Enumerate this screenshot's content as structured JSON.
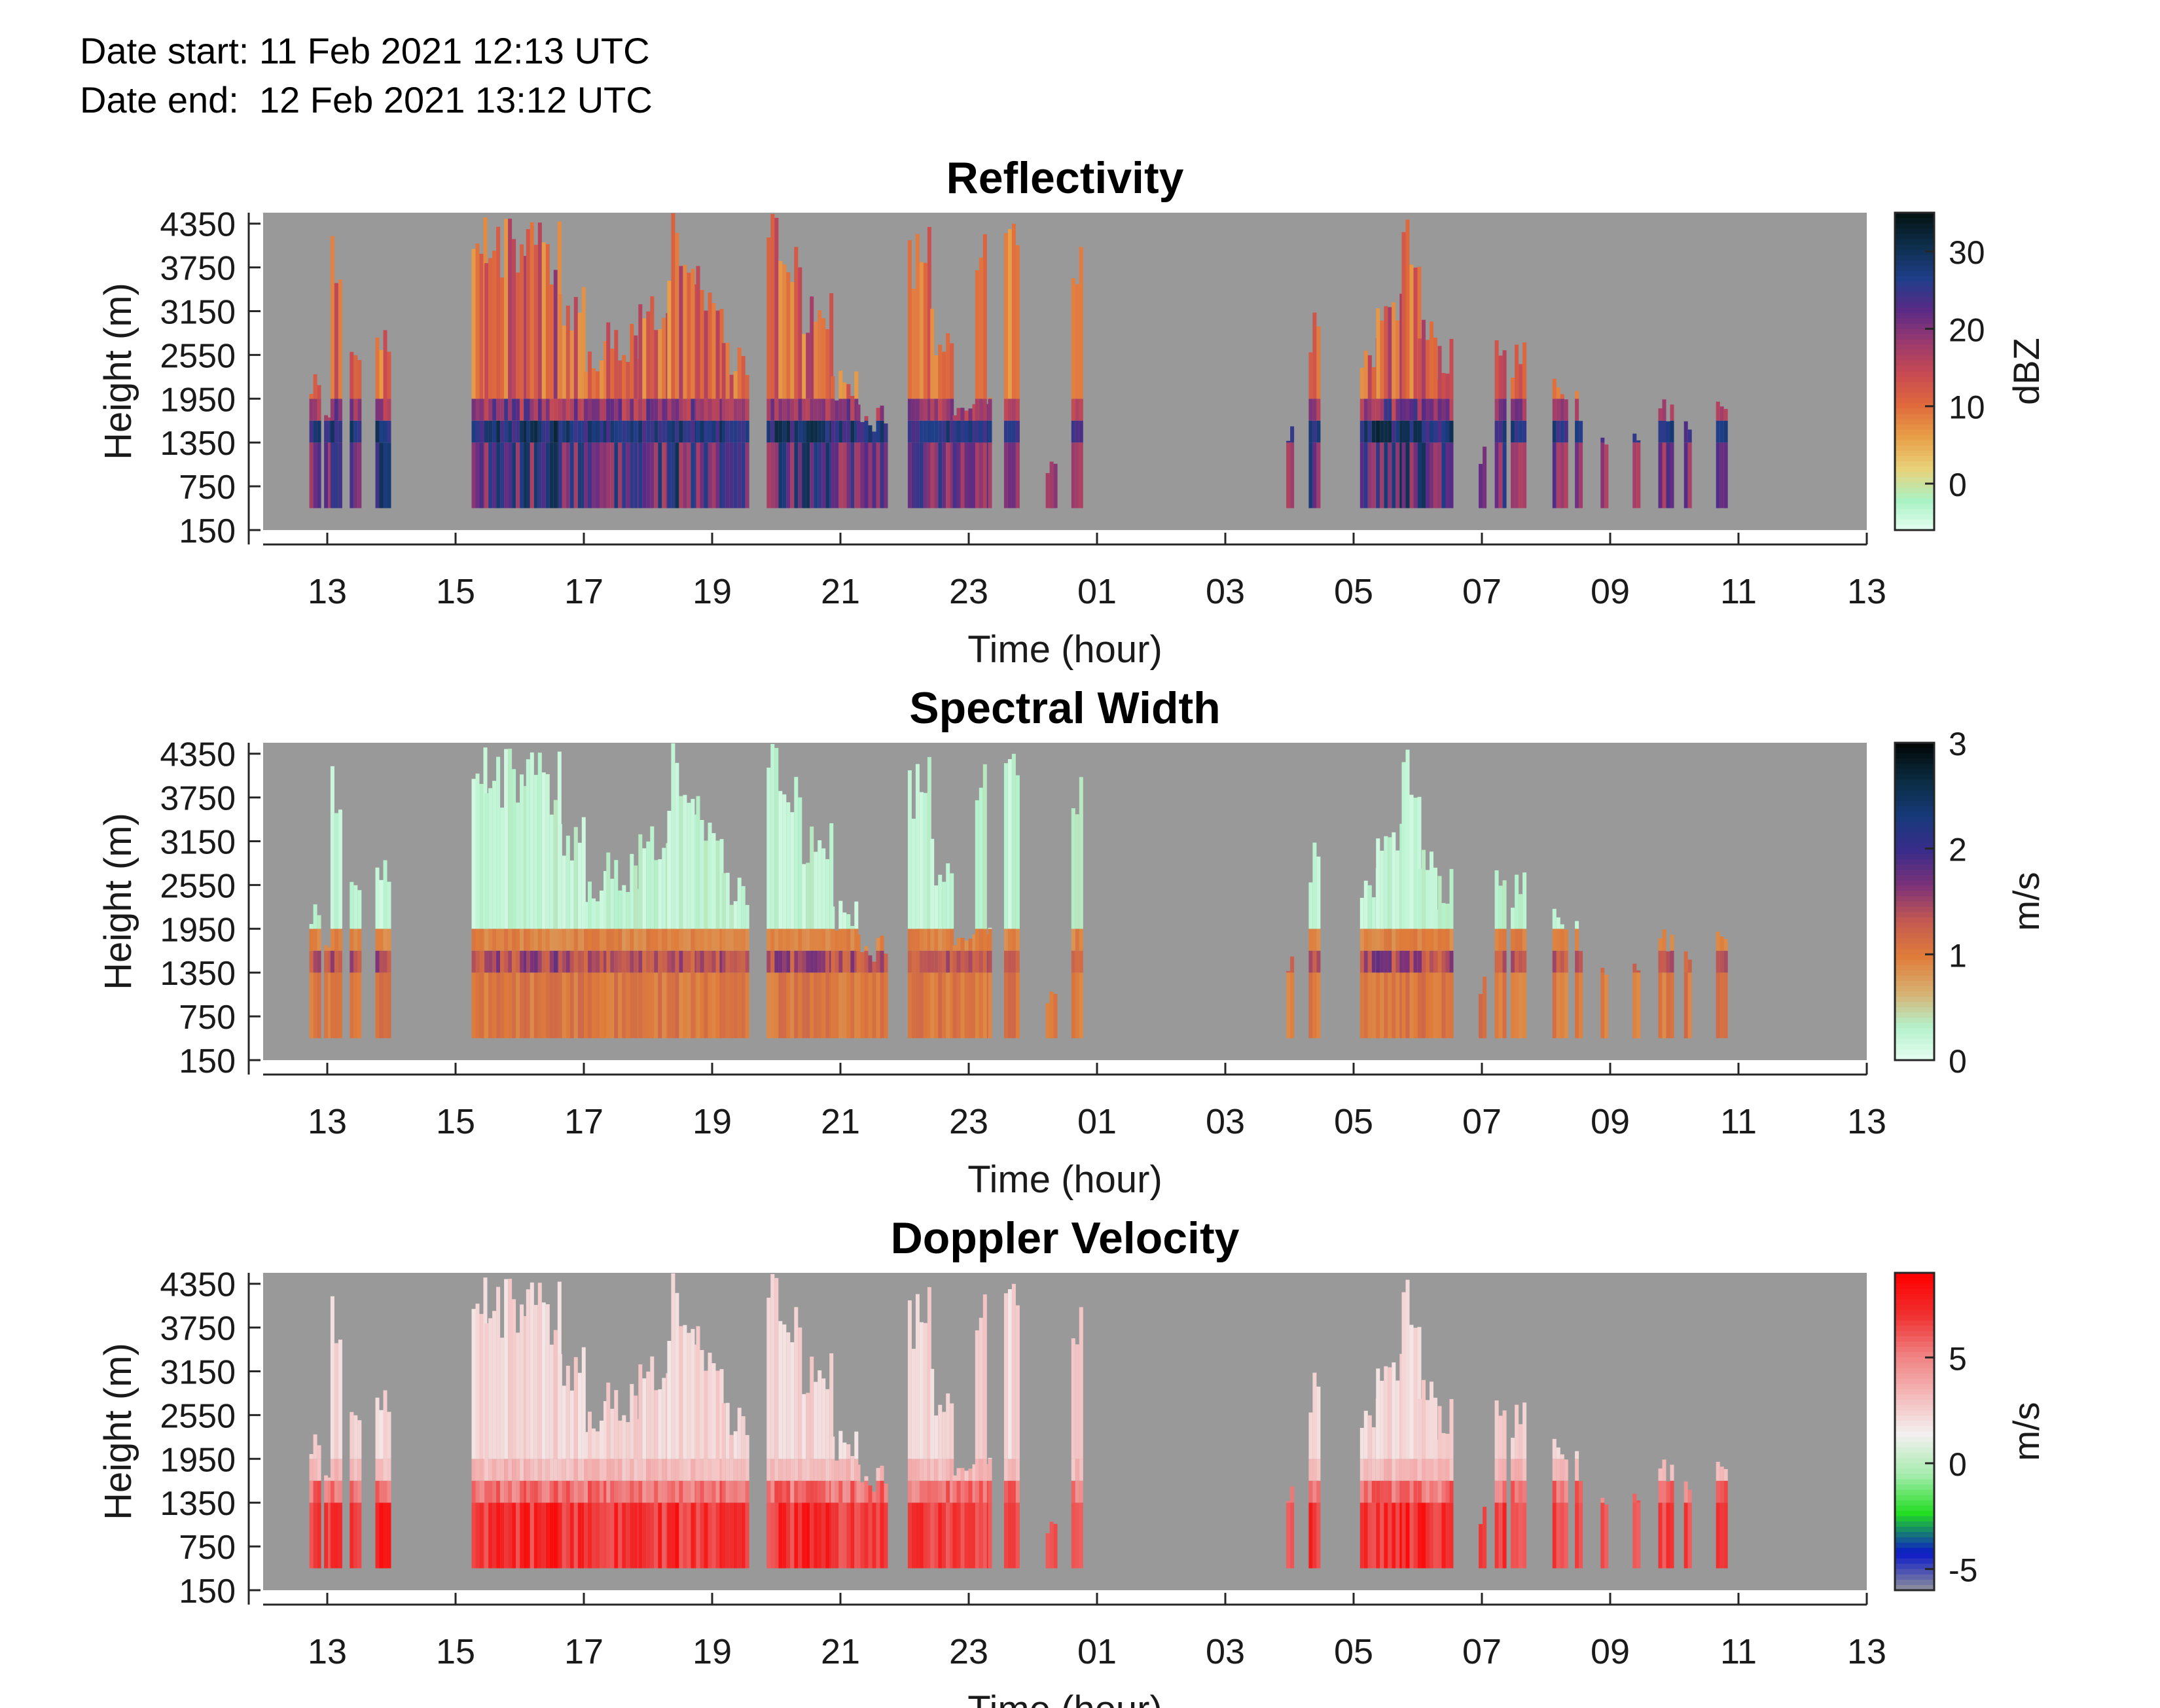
{
  "header": {
    "date_start": "Date start: 11 Feb 2021 12:13 UTC",
    "date_end": "Date end:  12 Feb 2021 13:12 UTC"
  },
  "colors": {
    "missing": "#999999",
    "reflectivity_scale": [
      "#eafff4",
      "#a9f2c4",
      "#e8d27a",
      "#e8a048",
      "#e06a3c",
      "#c84a52",
      "#9a3a6e",
      "#5a2a86",
      "#1f3e8a",
      "#0e2f4e",
      "#041414"
    ],
    "width_scale": [
      "#eafff4",
      "#b4f2cc",
      "#d8b070",
      "#e07c3a",
      "#c45a50",
      "#7e3278",
      "#3a2c8a",
      "#163a7a",
      "#0a2c42",
      "#020808"
    ],
    "velocity_scale": [
      "#999999",
      "#0a18c8",
      "#22dd22",
      "#a8ecb0",
      "#f4f0f0",
      "#f4b8b8",
      "#f08080",
      "#f03030",
      "#ff0000"
    ]
  },
  "chart_data": [
    {
      "type": "heatmap",
      "title": "Reflectivity",
      "xlabel": "Time (hour)",
      "ylabel": "Height (m)",
      "x_ticks": [
        "13",
        "15",
        "17",
        "19",
        "21",
        "23",
        "01",
        "03",
        "05",
        "07",
        "09",
        "11",
        "13"
      ],
      "y_ticks": [
        "4350",
        "3750",
        "3150",
        "2550",
        "1950",
        "1350",
        "750",
        "150"
      ],
      "colorbar": {
        "label": "dBZ",
        "ticks": [
          "30",
          "20",
          "10",
          "0"
        ],
        "range": [
          -6,
          35
        ]
      },
      "x_range": [
        "11 Feb 2021 12:13 UTC",
        "12 Feb 2021 13:12 UTC"
      ],
      "y_range": [
        150,
        4500
      ],
      "grid": false
    },
    {
      "type": "heatmap",
      "title": "Spectral Width",
      "xlabel": "Time (hour)",
      "ylabel": "Height (m)",
      "x_ticks": [
        "13",
        "15",
        "17",
        "19",
        "21",
        "23",
        "01",
        "03",
        "05",
        "07",
        "09",
        "11",
        "13"
      ],
      "y_ticks": [
        "4350",
        "3750",
        "3150",
        "2550",
        "1950",
        "1350",
        "750",
        "150"
      ],
      "colorbar": {
        "label": "m/s",
        "ticks": [
          "3",
          "2",
          "1",
          "0"
        ],
        "range": [
          0,
          3
        ]
      },
      "x_range": [
        "11 Feb 2021 12:13 UTC",
        "12 Feb 2021 13:12 UTC"
      ],
      "y_range": [
        150,
        4500
      ],
      "grid": false
    },
    {
      "type": "heatmap",
      "title": "Doppler Velocity",
      "xlabel": "Time (hour)",
      "ylabel": "Height (m)",
      "x_ticks": [
        "13",
        "15",
        "17",
        "19",
        "21",
        "23",
        "01",
        "03",
        "05",
        "07",
        "09",
        "11",
        "13"
      ],
      "y_ticks": [
        "4350",
        "3750",
        "3150",
        "2550",
        "1950",
        "1350",
        "750",
        "150"
      ],
      "colorbar": {
        "label": "m/s",
        "ticks": [
          "5",
          "0",
          "-5"
        ],
        "range": [
          -6,
          9
        ]
      },
      "x_range": [
        "11 Feb 2021 12:13 UTC",
        "12 Feb 2021 13:12 UTC"
      ],
      "y_range": [
        150,
        4500
      ],
      "grid": false
    }
  ]
}
